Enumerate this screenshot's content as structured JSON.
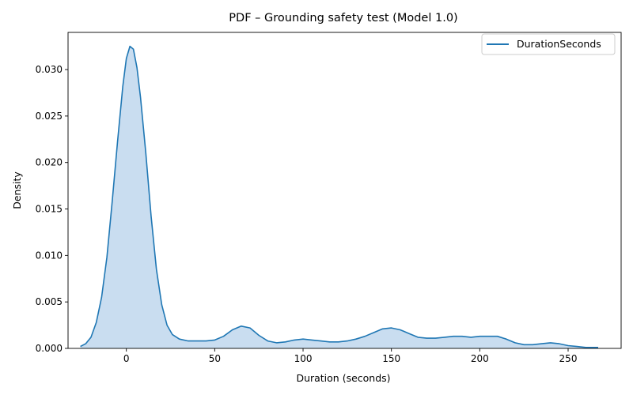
{
  "chart_data": {
    "type": "area",
    "title": "PDF – Grounding safety test (Model 1.0)",
    "xlabel": "Duration (seconds)",
    "ylabel": "Density",
    "xlim": [
      -33,
      280
    ],
    "ylim": [
      0,
      0.034
    ],
    "xticks": [
      0,
      50,
      100,
      150,
      200,
      250
    ],
    "yticks": [
      0.0,
      0.005,
      0.01,
      0.015,
      0.02,
      0.025,
      0.03
    ],
    "xtick_labels": [
      "0",
      "50",
      "100",
      "150",
      "200",
      "250"
    ],
    "ytick_labels": [
      "0.000",
      "0.005",
      "0.010",
      "0.015",
      "0.020",
      "0.025",
      "0.030"
    ],
    "grid": false,
    "legend": {
      "position": "top-right",
      "entries": [
        "DurationSeconds"
      ]
    },
    "colors": {
      "line": "#1f77b4",
      "fill": "#c6dbef"
    },
    "series": [
      {
        "name": "DurationSeconds",
        "x": [
          -26,
          -23,
          -20,
          -17,
          -14,
          -11,
          -8,
          -5,
          -2,
          0,
          2,
          4,
          6,
          8,
          11,
          14,
          17,
          20,
          23,
          26,
          30,
          35,
          40,
          45,
          50,
          55,
          60,
          65,
          70,
          75,
          80,
          85,
          90,
          95,
          100,
          105,
          110,
          115,
          120,
          125,
          130,
          135,
          140,
          145,
          150,
          155,
          160,
          165,
          170,
          175,
          180,
          185,
          190,
          195,
          200,
          205,
          210,
          215,
          220,
          225,
          230,
          235,
          240,
          245,
          250,
          255,
          260,
          267
        ],
        "y": [
          0.0002,
          0.0005,
          0.0012,
          0.0028,
          0.0055,
          0.0098,
          0.0158,
          0.0222,
          0.0282,
          0.0312,
          0.0325,
          0.0322,
          0.0302,
          0.027,
          0.021,
          0.0142,
          0.0085,
          0.0047,
          0.0025,
          0.0015,
          0.001,
          0.0008,
          0.0008,
          0.0008,
          0.0009,
          0.0013,
          0.002,
          0.0024,
          0.0022,
          0.0014,
          0.0008,
          0.0006,
          0.0007,
          0.0009,
          0.001,
          0.0009,
          0.0008,
          0.0007,
          0.0007,
          0.0008,
          0.001,
          0.0013,
          0.0017,
          0.0021,
          0.0022,
          0.002,
          0.0016,
          0.0012,
          0.0011,
          0.0011,
          0.0012,
          0.0013,
          0.0013,
          0.0012,
          0.0013,
          0.0013,
          0.0013,
          0.001,
          0.0006,
          0.0004,
          0.0004,
          0.0005,
          0.0006,
          0.0005,
          0.0003,
          0.0002,
          0.0001,
          0.0001
        ]
      }
    ]
  }
}
